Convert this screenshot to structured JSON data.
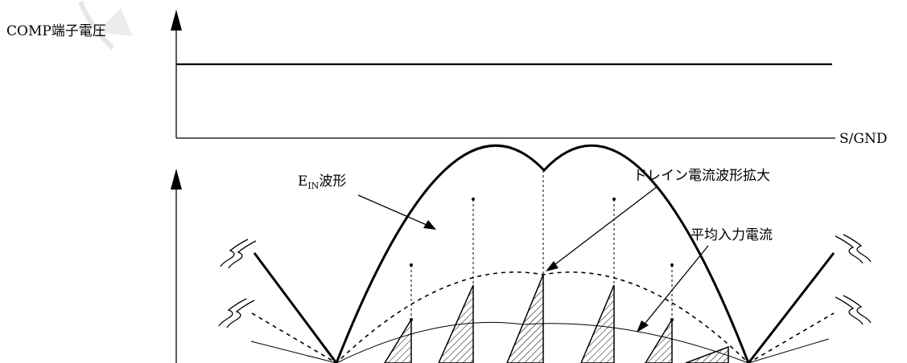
{
  "labels": {
    "comp_voltage": "COMP端子電圧",
    "ground": "S/GND",
    "ein_main": "E",
    "ein_sub": "IN",
    "ein_suffix": "波形",
    "drain_current": "ドレイン電流波形拡大",
    "avg_input": "平均入力電流"
  },
  "colors": {
    "line": "#000000",
    "background": "#ffffff",
    "watermark": "#e6e6e6"
  },
  "icons": [
    "arrow-up-icon",
    "break-mark-icon",
    "hatched-triangle-icon"
  ]
}
